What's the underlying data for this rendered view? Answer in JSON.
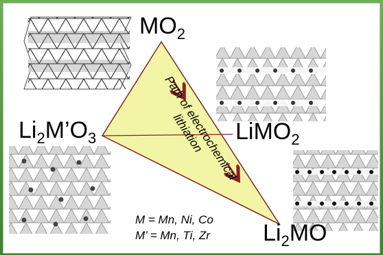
{
  "vertices": {
    "top": {
      "main": "MO",
      "sub": "2",
      "tail": ""
    },
    "left": {
      "pre": "Li",
      "sub1": "2",
      "mid": "M’O",
      "sub2": "3"
    },
    "right": {
      "main": "LiMO",
      "sub": "2"
    },
    "bottom": {
      "pre": "Li",
      "sub": "2",
      "post": "MO"
    }
  },
  "path_label": [
    "Path of electrochemical",
    "lithiation"
  ],
  "legend": [
    "M = Mn, Ni, Co",
    "M’ = Mn, Ti, Zr"
  ],
  "colors": {
    "triangle_fill": "#f3f5a6",
    "triangle_edge": "#8a1f1f",
    "arrow": "#8a1f1f",
    "frame": "#4a8a3a"
  },
  "structures": [
    "layered-lattice-MO2",
    "layered-lattice-LiMO2",
    "lattice-Li2MnO3",
    "lattice-Li2MO"
  ]
}
